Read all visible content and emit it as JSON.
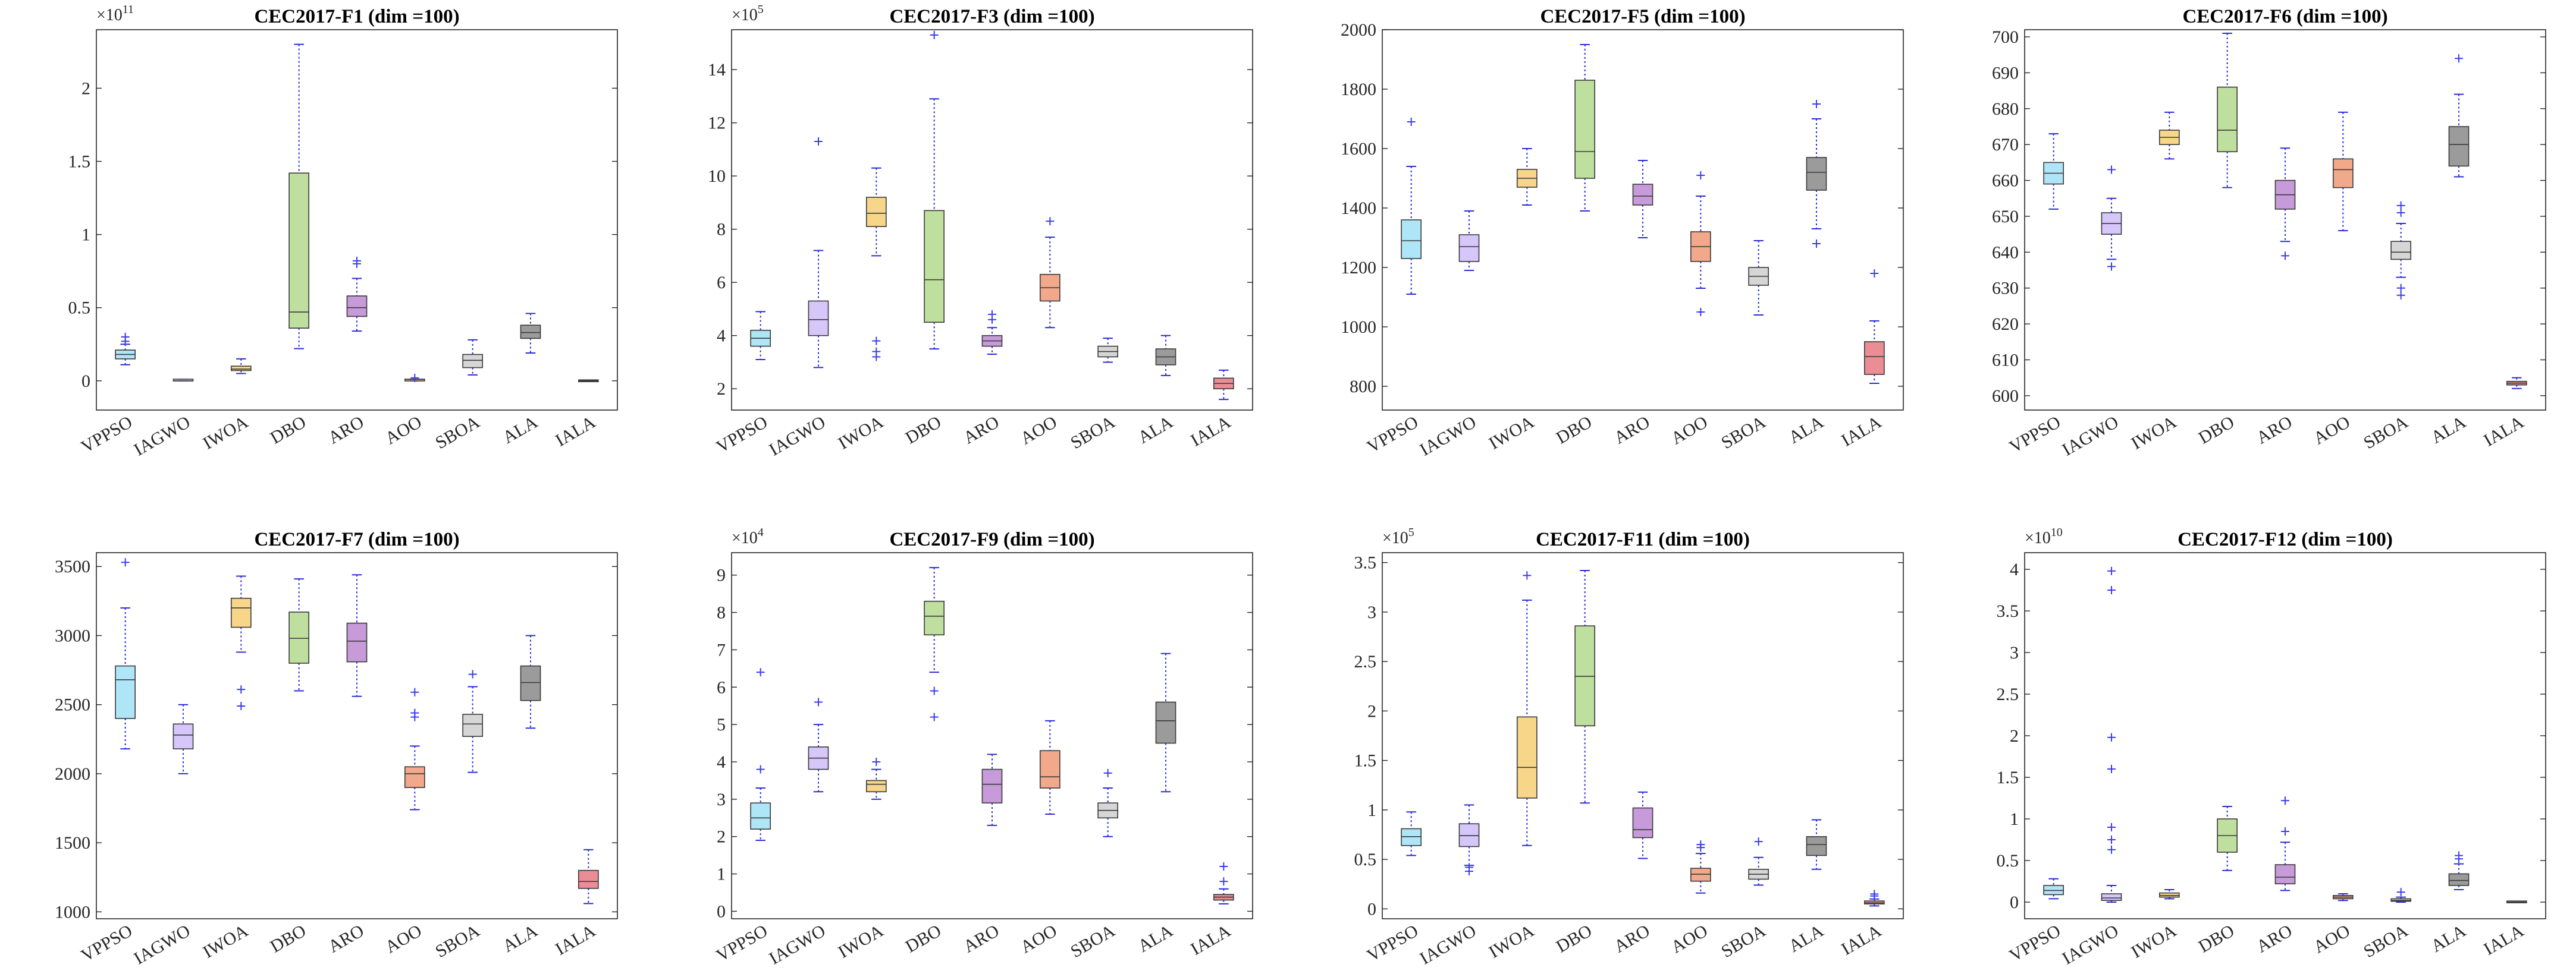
{
  "methods": [
    "VPPSO",
    "IAGWO",
    "IWOA",
    "DBO",
    "ARO",
    "AOO",
    "SBOA",
    "ALA",
    "IALA"
  ],
  "colors": {
    "VPPSO": "#aee6f8",
    "IAGWO": "#d6c7fb",
    "IWOA": "#f7d68a",
    "DBO": "#bfdf9e",
    "ARO": "#c79ad9",
    "AOO": "#f1a88b",
    "SBOA": "#d6d6d6",
    "ALA": "#9b9b9b",
    "IALA": "#ea8d94"
  },
  "chart_data": [
    {
      "type": "boxplot",
      "title": "CEC2017-F1 (dim =100)",
      "exponent": "11",
      "ylim": [
        -0.2,
        2.4
      ],
      "ticks": [
        0,
        0.5,
        1,
        1.5,
        2
      ],
      "tick_labels": [
        "0",
        "0.5",
        "1",
        "1.5",
        "2"
      ],
      "boxes": [
        {
          "min": 0.11,
          "q1": 0.15,
          "med": 0.18,
          "q3": 0.21,
          "max": 0.25,
          "outliers": [
            0.27,
            0.3
          ]
        },
        {
          "min": 0.0,
          "q1": 0.0,
          "med": 0.0,
          "q3": 0.01,
          "max": 0.01,
          "outliers": []
        },
        {
          "min": 0.05,
          "q1": 0.07,
          "med": 0.08,
          "q3": 0.1,
          "max": 0.15,
          "outliers": []
        },
        {
          "min": 0.22,
          "q1": 0.36,
          "med": 0.47,
          "q3": 1.42,
          "max": 2.3,
          "outliers": []
        },
        {
          "min": 0.34,
          "q1": 0.44,
          "med": 0.5,
          "q3": 0.58,
          "max": 0.7,
          "outliers": [
            0.8,
            0.82
          ]
        },
        {
          "min": 0.0,
          "q1": 0.0,
          "med": 0.01,
          "q3": 0.01,
          "max": 0.01,
          "outliers": [
            0.02
          ]
        },
        {
          "min": 0.04,
          "q1": 0.09,
          "med": 0.14,
          "q3": 0.18,
          "max": 0.28,
          "outliers": []
        },
        {
          "min": 0.19,
          "q1": 0.29,
          "med": 0.33,
          "q3": 0.38,
          "max": 0.46,
          "outliers": []
        },
        {
          "min": 0.0,
          "q1": 0.0,
          "med": 0.0,
          "q3": 0.0,
          "max": 0.0,
          "outliers": []
        }
      ]
    },
    {
      "type": "boxplot",
      "title": "CEC2017-F3 (dim =100)",
      "exponent": "5",
      "ylim": [
        1.2,
        15.5
      ],
      "ticks": [
        2,
        4,
        6,
        8,
        10,
        12,
        14
      ],
      "tick_labels": [
        "2",
        "4",
        "6",
        "8",
        "10",
        "12",
        "14"
      ],
      "boxes": [
        {
          "min": 3.1,
          "q1": 3.6,
          "med": 3.9,
          "q3": 4.2,
          "max": 4.9,
          "outliers": []
        },
        {
          "min": 2.8,
          "q1": 4.0,
          "med": 4.6,
          "q3": 5.3,
          "max": 7.2,
          "outliers": [
            11.3
          ]
        },
        {
          "min": 7.0,
          "q1": 8.1,
          "med": 8.6,
          "q3": 9.2,
          "max": 10.3,
          "outliers": [
            3.2,
            3.4,
            3.8
          ]
        },
        {
          "min": 3.5,
          "q1": 4.5,
          "med": 6.1,
          "q3": 8.7,
          "max": 12.9,
          "outliers": [
            15.3
          ]
        },
        {
          "min": 3.3,
          "q1": 3.6,
          "med": 3.8,
          "q3": 4.0,
          "max": 4.3,
          "outliers": [
            4.6,
            4.8
          ]
        },
        {
          "min": 4.3,
          "q1": 5.3,
          "med": 5.8,
          "q3": 6.3,
          "max": 7.7,
          "outliers": [
            8.3
          ]
        },
        {
          "min": 3.0,
          "q1": 3.2,
          "med": 3.4,
          "q3": 3.6,
          "max": 3.9,
          "outliers": []
        },
        {
          "min": 2.5,
          "q1": 2.9,
          "med": 3.2,
          "q3": 3.5,
          "max": 4.0,
          "outliers": []
        },
        {
          "min": 1.6,
          "q1": 2.0,
          "med": 2.2,
          "q3": 2.4,
          "max": 2.7,
          "outliers": []
        }
      ]
    },
    {
      "type": "boxplot",
      "title": "CEC2017-F5 (dim =100)",
      "exponent": "",
      "ylim": [
        720,
        2000
      ],
      "ticks": [
        800,
        1000,
        1200,
        1400,
        1600,
        1800,
        2000
      ],
      "tick_labels": [
        "800",
        "1000",
        "1200",
        "1400",
        "1600",
        "1800",
        "2000"
      ],
      "boxes": [
        {
          "min": 1110,
          "q1": 1230,
          "med": 1290,
          "q3": 1360,
          "max": 1540,
          "outliers": [
            1690
          ]
        },
        {
          "min": 1190,
          "q1": 1220,
          "med": 1270,
          "q3": 1310,
          "max": 1390,
          "outliers": []
        },
        {
          "min": 1410,
          "q1": 1470,
          "med": 1500,
          "q3": 1530,
          "max": 1600,
          "outliers": []
        },
        {
          "min": 1390,
          "q1": 1500,
          "med": 1590,
          "q3": 1830,
          "max": 1950,
          "outliers": []
        },
        {
          "min": 1300,
          "q1": 1410,
          "med": 1440,
          "q3": 1480,
          "max": 1560,
          "outliers": []
        },
        {
          "min": 1130,
          "q1": 1220,
          "med": 1270,
          "q3": 1320,
          "max": 1440,
          "outliers": [
            1050,
            1510
          ]
        },
        {
          "min": 1040,
          "q1": 1140,
          "med": 1170,
          "q3": 1200,
          "max": 1290,
          "outliers": []
        },
        {
          "min": 1330,
          "q1": 1460,
          "med": 1520,
          "q3": 1570,
          "max": 1700,
          "outliers": [
            1280,
            1750
          ]
        },
        {
          "min": 810,
          "q1": 840,
          "med": 900,
          "q3": 950,
          "max": 1020,
          "outliers": [
            1180
          ]
        }
      ]
    },
    {
      "type": "boxplot",
      "title": "CEC2017-F6 (dim =100)",
      "exponent": "",
      "ylim": [
        596,
        702
      ],
      "ticks": [
        600,
        610,
        620,
        630,
        640,
        650,
        660,
        670,
        680,
        690,
        700
      ],
      "tick_labels": [
        "600",
        "610",
        "620",
        "630",
        "640",
        "650",
        "660",
        "670",
        "680",
        "690",
        "700"
      ],
      "boxes": [
        {
          "min": 652,
          "q1": 659,
          "med": 662,
          "q3": 665,
          "max": 673,
          "outliers": []
        },
        {
          "min": 638,
          "q1": 645,
          "med": 648,
          "q3": 651,
          "max": 655,
          "outliers": [
            636,
            663
          ]
        },
        {
          "min": 666,
          "q1": 670,
          "med": 672,
          "q3": 674,
          "max": 679,
          "outliers": []
        },
        {
          "min": 658,
          "q1": 668,
          "med": 674,
          "q3": 686,
          "max": 701,
          "outliers": []
        },
        {
          "min": 643,
          "q1": 652,
          "med": 656,
          "q3": 660,
          "max": 669,
          "outliers": [
            639
          ]
        },
        {
          "min": 646,
          "q1": 658,
          "med": 663,
          "q3": 666,
          "max": 679,
          "outliers": []
        },
        {
          "min": 633,
          "q1": 638,
          "med": 640,
          "q3": 643,
          "max": 648,
          "outliers": [
            628,
            630,
            651,
            653
          ]
        },
        {
          "min": 661,
          "q1": 664,
          "med": 670,
          "q3": 675,
          "max": 684,
          "outliers": [
            694
          ]
        },
        {
          "min": 602,
          "q1": 603,
          "med": 603.5,
          "q3": 604,
          "max": 605,
          "outliers": []
        }
      ]
    },
    {
      "type": "boxplot",
      "title": "CEC2017-F7 (dim =100)",
      "exponent": "",
      "ylim": [
        950,
        3600
      ],
      "ticks": [
        1000,
        1500,
        2000,
        2500,
        3000,
        3500
      ],
      "tick_labels": [
        "1000",
        "1500",
        "2000",
        "2500",
        "3000",
        "3500"
      ],
      "boxes": [
        {
          "min": 2180,
          "q1": 2400,
          "med": 2680,
          "q3": 2780,
          "max": 3200,
          "outliers": [
            3530
          ]
        },
        {
          "min": 2000,
          "q1": 2180,
          "med": 2280,
          "q3": 2360,
          "max": 2500,
          "outliers": []
        },
        {
          "min": 2880,
          "q1": 3060,
          "med": 3200,
          "q3": 3270,
          "max": 3430,
          "outliers": [
            2490,
            2610
          ]
        },
        {
          "min": 2600,
          "q1": 2800,
          "med": 2980,
          "q3": 3170,
          "max": 3410,
          "outliers": []
        },
        {
          "min": 2560,
          "q1": 2810,
          "med": 2960,
          "q3": 3090,
          "max": 3440,
          "outliers": []
        },
        {
          "min": 1740,
          "q1": 1900,
          "med": 2000,
          "q3": 2050,
          "max": 2200,
          "outliers": [
            2410,
            2440,
            2590
          ]
        },
        {
          "min": 2010,
          "q1": 2270,
          "med": 2360,
          "q3": 2430,
          "max": 2630,
          "outliers": [
            2720
          ]
        },
        {
          "min": 2330,
          "q1": 2530,
          "med": 2660,
          "q3": 2780,
          "max": 3000,
          "outliers": []
        },
        {
          "min": 1060,
          "q1": 1170,
          "med": 1220,
          "q3": 1300,
          "max": 1450,
          "outliers": []
        }
      ]
    },
    {
      "type": "boxplot",
      "title": "CEC2017-F9 (dim =100)",
      "exponent": "4",
      "ylim": [
        -0.2,
        9.6
      ],
      "ticks": [
        0,
        1,
        2,
        3,
        4,
        5,
        6,
        7,
        8,
        9
      ],
      "tick_labels": [
        "0",
        "1",
        "2",
        "3",
        "4",
        "5",
        "6",
        "7",
        "8",
        "9"
      ],
      "boxes": [
        {
          "min": 1.9,
          "q1": 2.2,
          "med": 2.5,
          "q3": 2.9,
          "max": 3.3,
          "outliers": [
            3.8,
            6.4
          ]
        },
        {
          "min": 3.2,
          "q1": 3.8,
          "med": 4.1,
          "q3": 4.4,
          "max": 5.0,
          "outliers": [
            5.6
          ]
        },
        {
          "min": 3.0,
          "q1": 3.2,
          "med": 3.4,
          "q3": 3.5,
          "max": 3.8,
          "outliers": [
            4.0
          ]
        },
        {
          "min": 6.4,
          "q1": 7.4,
          "med": 7.9,
          "q3": 8.3,
          "max": 9.2,
          "outliers": [
            5.2,
            5.9
          ]
        },
        {
          "min": 2.3,
          "q1": 2.9,
          "med": 3.4,
          "q3": 3.8,
          "max": 4.2,
          "outliers": []
        },
        {
          "min": 2.6,
          "q1": 3.3,
          "med": 3.6,
          "q3": 4.3,
          "max": 5.1,
          "outliers": []
        },
        {
          "min": 2.0,
          "q1": 2.5,
          "med": 2.7,
          "q3": 2.9,
          "max": 3.3,
          "outliers": [
            3.7
          ]
        },
        {
          "min": 3.2,
          "q1": 4.5,
          "med": 5.1,
          "q3": 5.6,
          "max": 6.9,
          "outliers": []
        },
        {
          "min": 0.2,
          "q1": 0.3,
          "med": 0.38,
          "q3": 0.45,
          "max": 0.6,
          "outliers": [
            0.8,
            1.2
          ]
        }
      ]
    },
    {
      "type": "boxplot",
      "title": "CEC2017-F11 (dim =100)",
      "exponent": "5",
      "ylim": [
        -0.1,
        3.6
      ],
      "ticks": [
        0,
        0.5,
        1,
        1.5,
        2,
        2.5,
        3,
        3.5
      ],
      "tick_labels": [
        "0",
        "0.5",
        "1",
        "1.5",
        "2",
        "2.5",
        "3",
        "3.5"
      ],
      "boxes": [
        {
          "min": 0.54,
          "q1": 0.64,
          "med": 0.73,
          "q3": 0.81,
          "max": 0.98,
          "outliers": []
        },
        {
          "min": 0.44,
          "q1": 0.63,
          "med": 0.74,
          "q3": 0.86,
          "max": 1.05,
          "outliers": [
            0.38,
            0.42
          ]
        },
        {
          "min": 0.64,
          "q1": 1.12,
          "med": 1.43,
          "q3": 1.94,
          "max": 3.12,
          "outliers": [
            3.37
          ]
        },
        {
          "min": 1.07,
          "q1": 1.85,
          "med": 2.35,
          "q3": 2.86,
          "max": 3.42,
          "outliers": []
        },
        {
          "min": 0.51,
          "q1": 0.72,
          "med": 0.8,
          "q3": 1.02,
          "max": 1.18,
          "outliers": []
        },
        {
          "min": 0.16,
          "q1": 0.28,
          "med": 0.35,
          "q3": 0.41,
          "max": 0.56,
          "outliers": [
            0.62,
            0.65
          ]
        },
        {
          "min": 0.24,
          "q1": 0.3,
          "med": 0.35,
          "q3": 0.4,
          "max": 0.52,
          "outliers": [
            0.68
          ]
        },
        {
          "min": 0.4,
          "q1": 0.54,
          "med": 0.65,
          "q3": 0.73,
          "max": 0.9,
          "outliers": []
        },
        {
          "min": 0.03,
          "q1": 0.05,
          "med": 0.06,
          "q3": 0.08,
          "max": 0.1,
          "outliers": [
            0.13,
            0.15
          ]
        }
      ]
    },
    {
      "type": "boxplot",
      "title": "CEC2017-F12 (dim =100)",
      "exponent": "10",
      "ylim": [
        -0.2,
        4.2
      ],
      "ticks": [
        0,
        0.5,
        1,
        1.5,
        2,
        2.5,
        3,
        3.5,
        4
      ],
      "tick_labels": [
        "0",
        "0.5",
        "1",
        "1.5",
        "2",
        "2.5",
        "3",
        "3.5",
        "4"
      ],
      "boxes": [
        {
          "min": 0.04,
          "q1": 0.09,
          "med": 0.14,
          "q3": 0.2,
          "max": 0.28,
          "outliers": []
        },
        {
          "min": 0.0,
          "q1": 0.02,
          "med": 0.05,
          "q3": 0.1,
          "max": 0.2,
          "outliers": [
            0.63,
            0.75,
            0.9,
            1.6,
            1.98,
            3.75,
            3.98
          ]
        },
        {
          "min": 0.04,
          "q1": 0.06,
          "med": 0.08,
          "q3": 0.11,
          "max": 0.15,
          "outliers": []
        },
        {
          "min": 0.38,
          "q1": 0.6,
          "med": 0.8,
          "q3": 1.0,
          "max": 1.15,
          "outliers": []
        },
        {
          "min": 0.14,
          "q1": 0.22,
          "med": 0.3,
          "q3": 0.45,
          "max": 0.72,
          "outliers": [
            0.85,
            1.22
          ]
        },
        {
          "min": 0.02,
          "q1": 0.04,
          "med": 0.06,
          "q3": 0.08,
          "max": 0.1,
          "outliers": []
        },
        {
          "min": 0.0,
          "q1": 0.01,
          "med": 0.02,
          "q3": 0.04,
          "max": 0.06,
          "outliers": [
            0.12
          ]
        },
        {
          "min": 0.15,
          "q1": 0.2,
          "med": 0.26,
          "q3": 0.34,
          "max": 0.46,
          "outliers": [
            0.52,
            0.56
          ]
        },
        {
          "min": 0.0,
          "q1": 0.0,
          "med": 0.0,
          "q3": 0.005,
          "max": 0.01,
          "outliers": []
        }
      ]
    }
  ]
}
